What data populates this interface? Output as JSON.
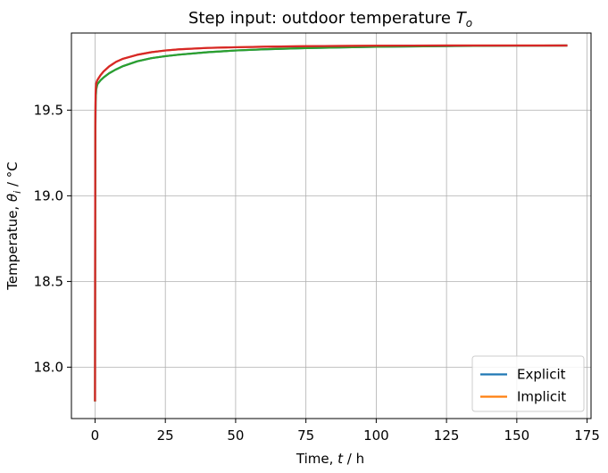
{
  "chart_data": {
    "type": "line",
    "title": "Step input: outdoor temperature ",
    "title_math": "T",
    "title_sub": "o",
    "xlabel": "Time, ",
    "xlabel_math": "t",
    "xlabel_unit": " / h",
    "ylabel": "Temperatue, ",
    "ylabel_math": "θ",
    "ylabel_sub": "i",
    "ylabel_unit": " / °C",
    "xlim": [
      -8.4,
      176.4
    ],
    "ylim": [
      17.7,
      19.95
    ],
    "xticks": [
      0,
      25,
      50,
      75,
      100,
      125,
      150,
      175
    ],
    "xtick_labels": [
      "0",
      "25",
      "50",
      "75",
      "100",
      "125",
      "150",
      "175"
    ],
    "yticks": [
      18.0,
      18.5,
      19.0,
      19.5
    ],
    "ytick_labels": [
      "18.0",
      "18.5",
      "19.0",
      "19.5"
    ],
    "grid": true,
    "legend_position": "lower-right",
    "series": [
      {
        "name": "Explicit",
        "color": "#1f77b4",
        "in_legend": true,
        "x": [
          0,
          0.05,
          0.1,
          0.2,
          0.4,
          0.8,
          1,
          2,
          3,
          5,
          7.5,
          10,
          15,
          20,
          25,
          30,
          40,
          50,
          60,
          75,
          100,
          125,
          150,
          168
        ],
        "y": [
          17.8,
          18.9,
          19.3,
          19.55,
          19.62,
          19.65,
          19.655,
          19.675,
          19.69,
          19.715,
          19.738,
          19.757,
          19.785,
          19.803,
          19.815,
          19.824,
          19.838,
          19.848,
          19.855,
          19.862,
          19.87,
          19.874,
          19.876,
          19.877
        ]
      },
      {
        "name": "Implicit",
        "color": "#ff7f0e",
        "in_legend": true,
        "x": [
          0,
          0.05,
          0.1,
          0.2,
          0.4,
          0.8,
          1,
          2,
          3,
          5,
          7.5,
          10,
          15,
          20,
          25,
          30,
          40,
          50,
          60,
          75,
          100,
          125,
          150,
          168
        ],
        "y": [
          17.8,
          19.0,
          19.4,
          19.6,
          19.655,
          19.675,
          19.68,
          19.705,
          19.725,
          19.755,
          19.782,
          19.8,
          19.823,
          19.838,
          19.848,
          19.855,
          19.863,
          19.867,
          19.87,
          19.873,
          19.876,
          19.877,
          19.877,
          19.877
        ]
      },
      {
        "name": "",
        "color": "#2ca02c",
        "in_legend": false,
        "x": [
          0,
          0.05,
          0.1,
          0.2,
          0.4,
          0.8,
          1,
          2,
          3,
          5,
          7.5,
          10,
          15,
          20,
          25,
          30,
          40,
          50,
          60,
          75,
          100,
          125,
          150,
          168
        ],
        "y": [
          17.8,
          18.9,
          19.3,
          19.55,
          19.62,
          19.65,
          19.655,
          19.675,
          19.69,
          19.715,
          19.738,
          19.757,
          19.785,
          19.803,
          19.815,
          19.824,
          19.838,
          19.848,
          19.855,
          19.862,
          19.87,
          19.874,
          19.876,
          19.877
        ]
      },
      {
        "name": "",
        "color": "#d62728",
        "in_legend": false,
        "x": [
          0,
          0.05,
          0.1,
          0.2,
          0.4,
          0.8,
          1,
          2,
          3,
          5,
          7.5,
          10,
          15,
          20,
          25,
          30,
          40,
          50,
          60,
          75,
          100,
          125,
          150,
          168
        ],
        "y": [
          17.8,
          19.0,
          19.4,
          19.6,
          19.655,
          19.675,
          19.68,
          19.705,
          19.725,
          19.755,
          19.782,
          19.8,
          19.823,
          19.838,
          19.848,
          19.855,
          19.863,
          19.867,
          19.87,
          19.873,
          19.876,
          19.877,
          19.877,
          19.877
        ]
      }
    ]
  }
}
